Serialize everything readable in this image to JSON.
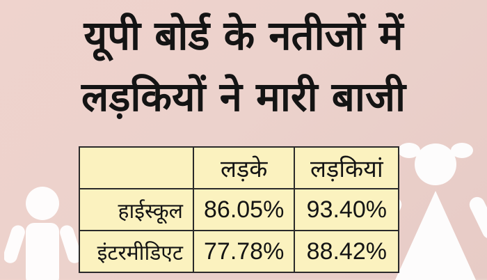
{
  "headline": {
    "line1": "यूपी बोर्ड के नतीजों में",
    "line2": "लड़कियों ने मारी बाजी"
  },
  "table": {
    "columns": [
      "",
      "लड़के",
      "लड़कियां"
    ],
    "rows": [
      {
        "label": "हाईस्कूल",
        "boys": "86.05%",
        "girls": "93.40%"
      },
      {
        "label": "इंटरमीडिएट",
        "boys": "77.78%",
        "girls": "88.42%"
      }
    ]
  },
  "colors": {
    "background": "#ecd2cc",
    "table_fill": "#fbf2bf",
    "text": "#141414",
    "figures": "#ffffff"
  },
  "icons": [
    "boy-figure-icon",
    "girl-figure-icon"
  ]
}
